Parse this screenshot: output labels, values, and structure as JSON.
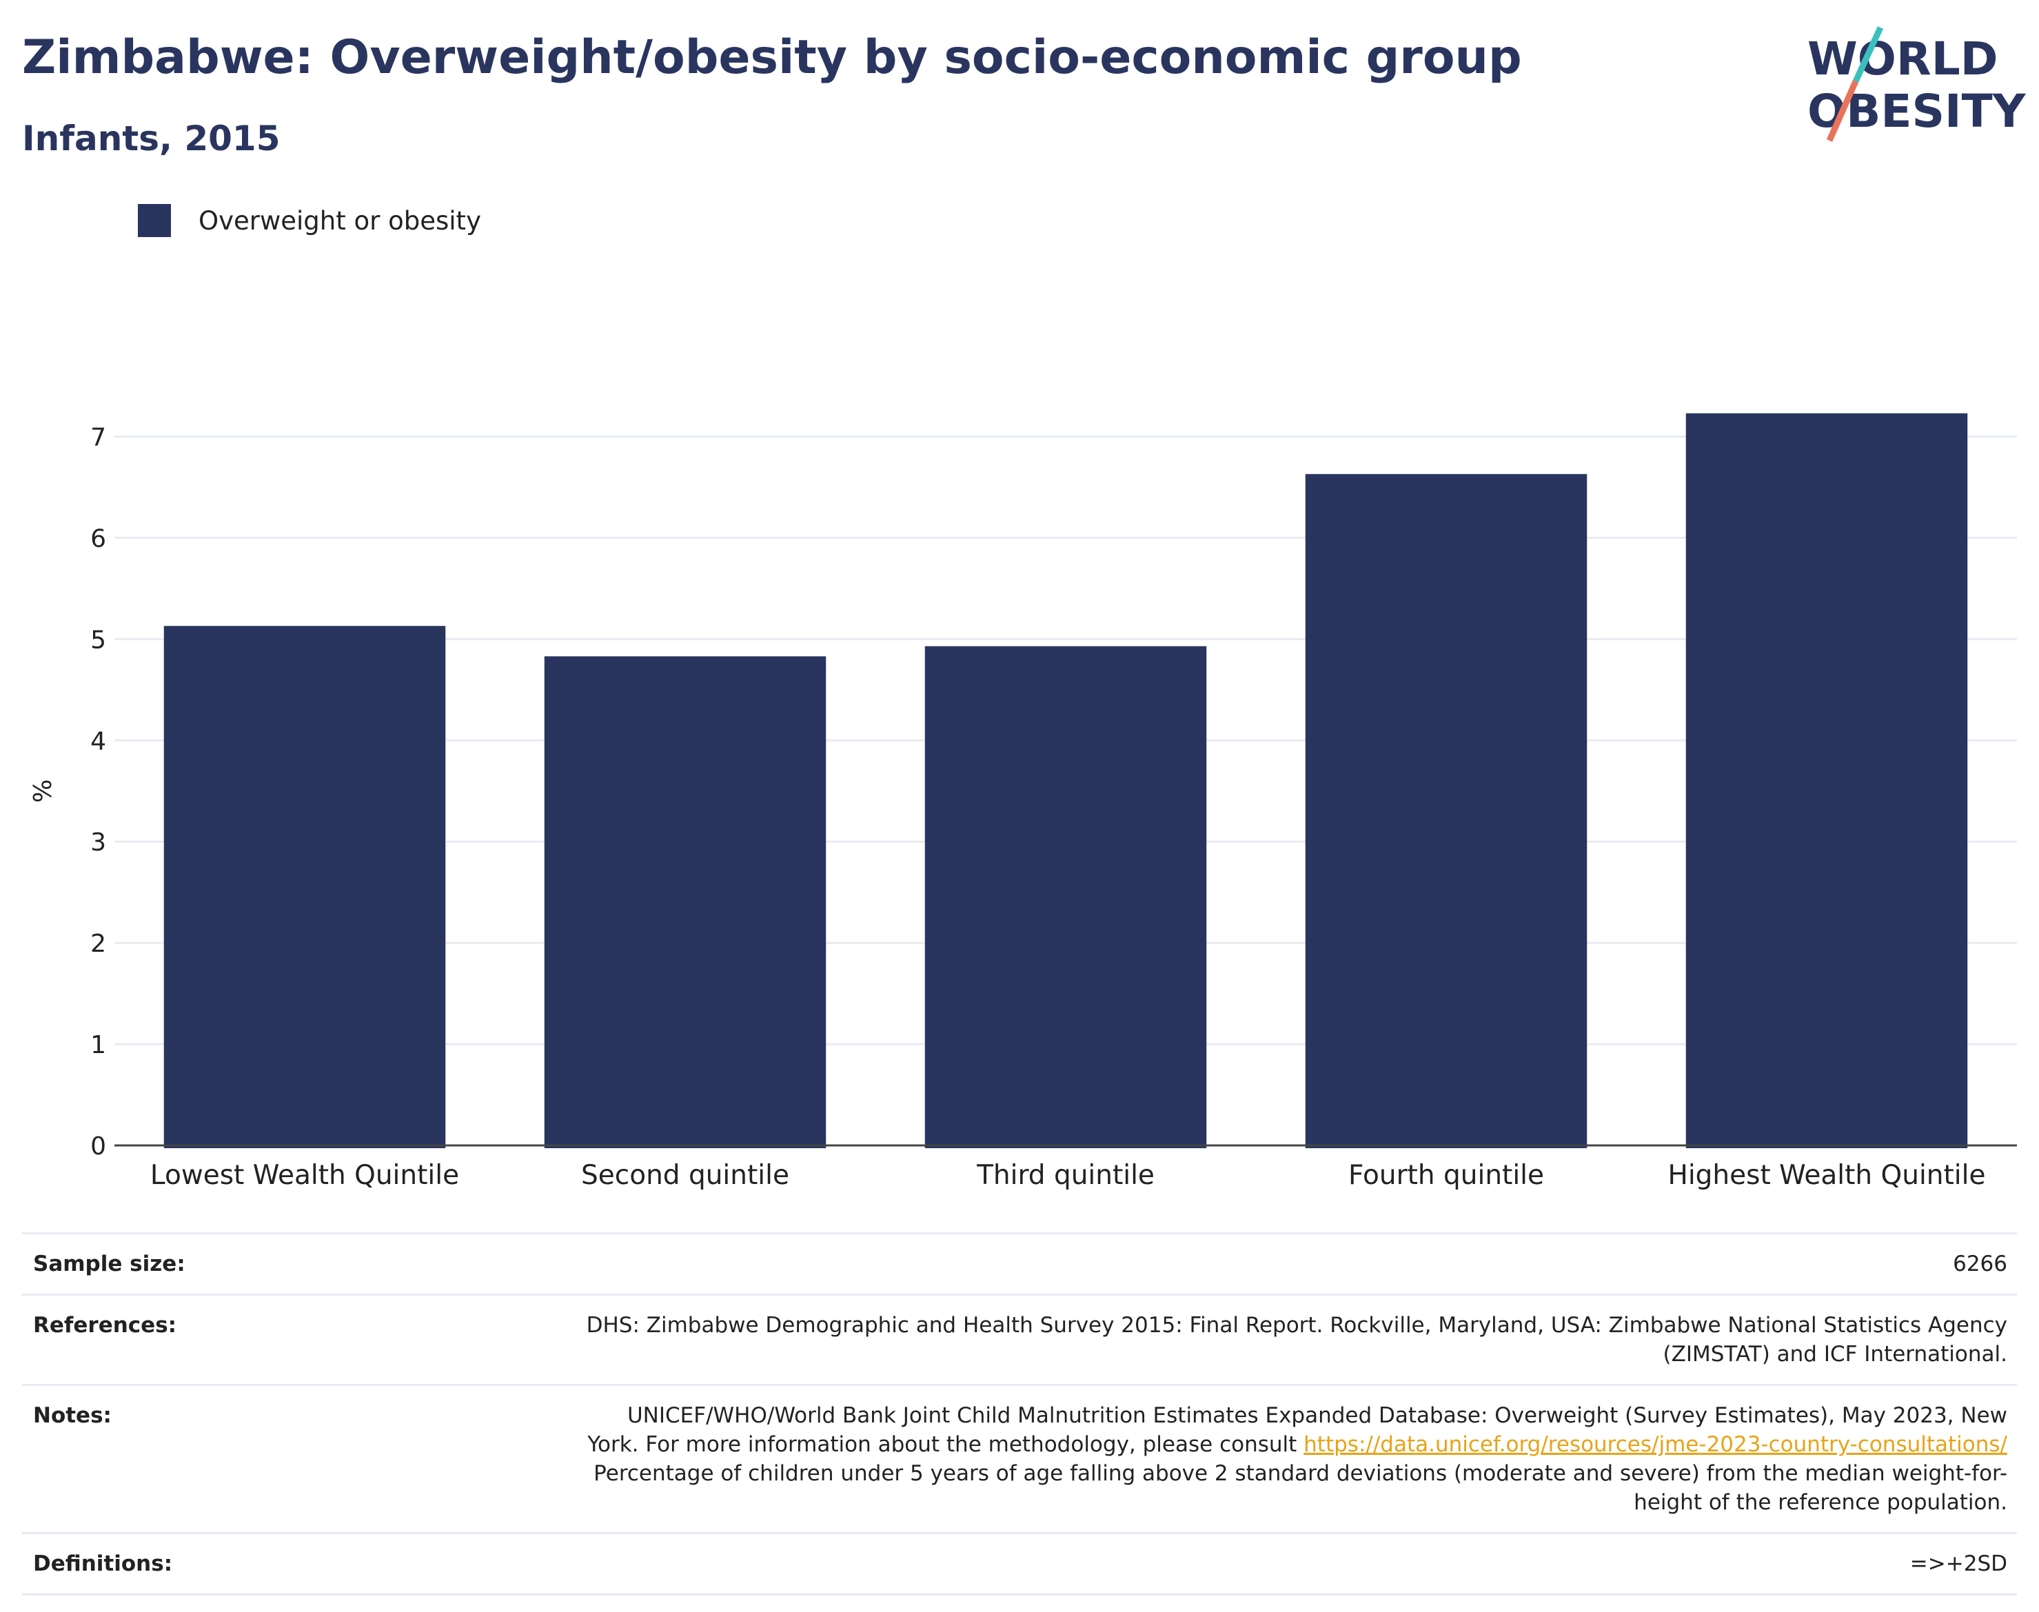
{
  "header": {
    "title": "Zimbabwe: Overweight/obesity by socio-economic group",
    "subtitle": "Infants, 2015"
  },
  "logo": {
    "line1": "WORLD",
    "line2": "OBESITY"
  },
  "colors": {
    "bar": "#2a355f",
    "text": "#2a355f",
    "link": "#e8a317",
    "logo_teal": "#3bbfbf",
    "logo_coral": "#e8735a"
  },
  "chart_data": {
    "type": "bar",
    "categories": [
      "Lowest Wealth Quintile",
      "Second quintile",
      "Third quintile",
      "Fourth quintile",
      "Highest Wealth Quintile"
    ],
    "series": [
      {
        "name": "Overweight or obesity",
        "values": [
          5.13,
          4.83,
          4.93,
          6.63,
          7.23
        ]
      }
    ],
    "title": "Zimbabwe: Overweight/obesity by socio-economic group",
    "subtitle": "Infants, 2015",
    "xlabel": "",
    "ylabel": "%",
    "ylim": [
      0,
      7.5
    ],
    "yticks": [
      0,
      1,
      2,
      3,
      4,
      5,
      6,
      7
    ],
    "grid": true,
    "legend": "top-left"
  },
  "meta": {
    "sample_size": {
      "label": "Sample size:",
      "value": "6266"
    },
    "references": {
      "label": "References:",
      "line1": "DHS: Zimbabwe Demographic and Health Survey 2015: Final Report. Rockville, Maryland, USA: Zimbabwe National Statistics Agency",
      "line2": "(ZIMSTAT) and ICF International."
    },
    "notes": {
      "label": "Notes:",
      "line1": "UNICEF/WHO/World Bank Joint Child Malnutrition Estimates Expanded Database: Overweight (Survey Estimates), May 2023, New",
      "line2_prefix": "York. For more information about the methodology, please consult ",
      "link": "https://data.unicef.org/resources/jme-2023-country-consultations/",
      "line3": "Percentage of children under 5 years of age falling above 2 standard deviations (moderate and severe) from the median weight-for-",
      "line4": "height of the reference population."
    },
    "definitions": {
      "label": "Definitions:",
      "value": "=>+2SD"
    }
  }
}
